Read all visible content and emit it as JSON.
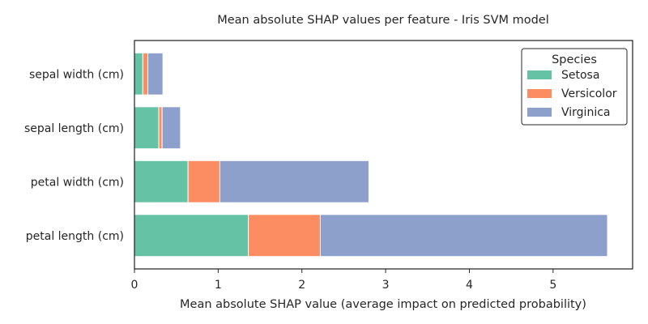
{
  "chart_data": {
    "type": "bar",
    "orientation": "horizontal",
    "stacked": true,
    "title": "Mean absolute SHAP values per feature - Iris SVM model",
    "xlabel": "Mean absolute SHAP value (average impact on predicted probability)",
    "ylabel": "",
    "categories": [
      "sepal width (cm)",
      "sepal length (cm)",
      "petal width (cm)",
      "petal length (cm)"
    ],
    "series": [
      {
        "name": "Setosa",
        "color": "#66c2a5",
        "values": [
          0.1,
          0.29,
          0.64,
          1.36
        ]
      },
      {
        "name": "Versicolor",
        "color": "#fc8d62",
        "values": [
          0.06,
          0.04,
          0.38,
          0.86
        ]
      },
      {
        "name": "Virginica",
        "color": "#8da0cb",
        "values": [
          0.18,
          0.22,
          1.78,
          3.43
        ]
      }
    ],
    "xlim": [
      0,
      5.95
    ],
    "xticks": [
      0,
      1,
      2,
      3,
      4,
      5
    ],
    "grid": false,
    "legend": {
      "title": "Species",
      "placement": "top-right"
    }
  }
}
